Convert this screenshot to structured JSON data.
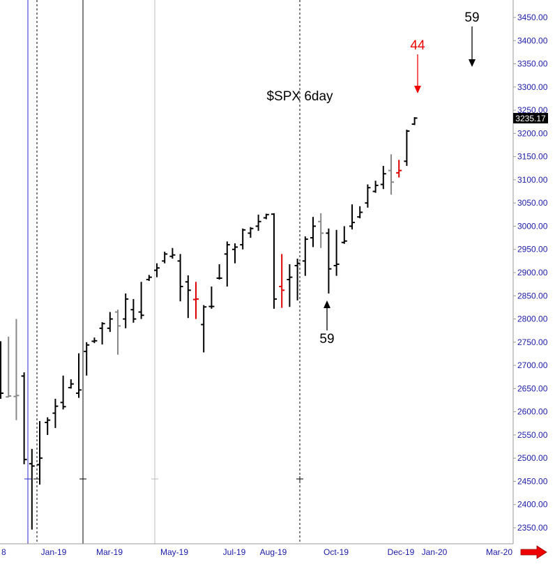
{
  "chart_data": {
    "type": "ohlc",
    "title": "$SPX 6day",
    "last_price_label": "3235.17",
    "y_axis": {
      "ylim": [
        2320,
        3480
      ],
      "ticks": [
        2350,
        2400,
        2450,
        2500,
        2550,
        2600,
        2650,
        2700,
        2750,
        2800,
        2850,
        2900,
        2950,
        3000,
        3050,
        3100,
        3150,
        3200,
        3250,
        3300,
        3350,
        3400,
        3450
      ],
      "tick_labels": [
        "2350.00",
        "2400.00",
        "2450.00",
        "2500.00",
        "2550.00",
        "2600.00",
        "2650.00",
        "2700.00",
        "2750.00",
        "2800.00",
        "2850.00",
        "2900.00",
        "2950.00",
        "3000.00",
        "3050.00",
        "3100.00",
        "3150.00",
        "3200.00",
        "3250.00",
        "3300.00",
        "3350.00",
        "3400.00",
        "3450.00"
      ]
    },
    "x_axis": {
      "labels": [
        "8",
        "Jan-19",
        "Mar-19",
        "May-19",
        "Jul-19",
        "Aug-19",
        "Oct-19",
        "Dec-19",
        "Jan-20",
        "Mar-20"
      ]
    },
    "colors": {
      "up_bar": "#000000",
      "neutral_bar": "#888888",
      "down_bar": "#dd0000",
      "axis_text": "#1a1aa8",
      "annotation_red": "#ee0000",
      "scroll_arrow": "#ee0000"
    },
    "bars": [
      {
        "h": 2752,
        "l": 2628,
        "o": 2658,
        "c": 2640,
        "color": "black"
      },
      {
        "h": 2762,
        "l": 2631,
        "o": 2632,
        "c": 2634,
        "color": "gray"
      },
      {
        "h": 2800,
        "l": 2582,
        "o": 2633,
        "c": 2635,
        "color": "gray"
      },
      {
        "h": 2685,
        "l": 2487,
        "o": 2677,
        "c": 2497,
        "color": "black"
      },
      {
        "h": 2520,
        "l": 2346,
        "o": 2488,
        "c": 2483,
        "color": "black"
      },
      {
        "h": 2580,
        "l": 2443,
        "o": 2486,
        "c": 2500,
        "color": "black"
      },
      {
        "h": 2588,
        "l": 2550,
        "o": 2577,
        "c": 2582,
        "color": "black"
      },
      {
        "h": 2628,
        "l": 2565,
        "o": 2597,
        "c": 2612,
        "color": "black"
      },
      {
        "h": 2678,
        "l": 2605,
        "o": 2620,
        "c": 2611,
        "color": "black"
      },
      {
        "h": 2670,
        "l": 2650,
        "o": 2652,
        "c": 2660,
        "color": "black"
      },
      {
        "h": 2726,
        "l": 2630,
        "o": 2640,
        "c": 2647,
        "color": "black"
      },
      {
        "h": 2750,
        "l": 2678,
        "o": 2730,
        "c": 2744,
        "color": "black"
      },
      {
        "h": 2760,
        "l": 2748,
        "o": 2752,
        "c": 2753,
        "color": "black"
      },
      {
        "h": 2793,
        "l": 2745,
        "o": 2780,
        "c": 2790,
        "color": "black"
      },
      {
        "h": 2815,
        "l": 2772,
        "o": 2780,
        "c": 2800,
        "color": "black"
      },
      {
        "h": 2820,
        "l": 2723,
        "o": 2815,
        "c": 2785,
        "color": "gray"
      },
      {
        "h": 2855,
        "l": 2780,
        "o": 2800,
        "c": 2843,
        "color": "black"
      },
      {
        "h": 2843,
        "l": 2792,
        "o": 2820,
        "c": 2800,
        "color": "black"
      },
      {
        "h": 2880,
        "l": 2800,
        "o": 2815,
        "c": 2808,
        "color": "black"
      },
      {
        "h": 2895,
        "l": 2882,
        "o": 2885,
        "c": 2890,
        "color": "black"
      },
      {
        "h": 2920,
        "l": 2890,
        "o": 2905,
        "c": 2910,
        "color": "black"
      },
      {
        "h": 2945,
        "l": 2920,
        "o": 2925,
        "c": 2940,
        "color": "black"
      },
      {
        "h": 2953,
        "l": 2930,
        "o": 2935,
        "c": 2938,
        "color": "black"
      },
      {
        "h": 2940,
        "l": 2838,
        "o": 2925,
        "c": 2870,
        "color": "black"
      },
      {
        "h": 2894,
        "l": 2802,
        "o": 2880,
        "c": 2862,
        "color": "black"
      },
      {
        "h": 2880,
        "l": 2800,
        "o": 2842,
        "c": 2843,
        "color": "red"
      },
      {
        "h": 2830,
        "l": 2728,
        "o": 2788,
        "c": 2826,
        "color": "black"
      },
      {
        "h": 2870,
        "l": 2822,
        "o": 2827,
        "c": 2827,
        "color": "black"
      },
      {
        "h": 2918,
        "l": 2885,
        "o": 2888,
        "c": 2888,
        "color": "black"
      },
      {
        "h": 2967,
        "l": 2870,
        "o": 2940,
        "c": 2960,
        "color": "black"
      },
      {
        "h": 2963,
        "l": 2920,
        "o": 2950,
        "c": 2955,
        "color": "black"
      },
      {
        "h": 2995,
        "l": 2950,
        "o": 2960,
        "c": 2992,
        "color": "black"
      },
      {
        "h": 2998,
        "l": 2975,
        "o": 2985,
        "c": 2995,
        "color": "black"
      },
      {
        "h": 3025,
        "l": 2990,
        "o": 3000,
        "c": 3010,
        "color": "black"
      },
      {
        "h": 3027,
        "l": 3015,
        "o": 3018,
        "c": 3025,
        "color": "black"
      },
      {
        "h": 3028,
        "l": 2822,
        "o": 3026,
        "c": 2843,
        "color": "black"
      },
      {
        "h": 2940,
        "l": 2824,
        "o": 2870,
        "c": 2862,
        "color": "red"
      },
      {
        "h": 2918,
        "l": 2826,
        "o": 2885,
        "c": 2890,
        "color": "black"
      },
      {
        "h": 2930,
        "l": 2840,
        "o": 2915,
        "c": 2920,
        "color": "black"
      },
      {
        "h": 2978,
        "l": 2893,
        "o": 2925,
        "c": 2972,
        "color": "black"
      },
      {
        "h": 3020,
        "l": 2955,
        "o": 2975,
        "c": 3000,
        "color": "black"
      },
      {
        "h": 3028,
        "l": 2953,
        "o": 3010,
        "c": 2985,
        "color": "gray"
      },
      {
        "h": 2995,
        "l": 2855,
        "o": 2985,
        "c": 2908,
        "color": "black"
      },
      {
        "h": 2992,
        "l": 2893,
        "o": 2915,
        "c": 2918,
        "color": "black"
      },
      {
        "h": 3000,
        "l": 2962,
        "o": 2965,
        "c": 2968,
        "color": "black"
      },
      {
        "h": 3047,
        "l": 2993,
        "o": 3000,
        "c": 3008,
        "color": "black"
      },
      {
        "h": 3043,
        "l": 3017,
        "o": 3020,
        "c": 3030,
        "color": "black"
      },
      {
        "h": 3090,
        "l": 3040,
        "o": 3050,
        "c": 3083,
        "color": "black"
      },
      {
        "h": 3098,
        "l": 3072,
        "o": 3075,
        "c": 3088,
        "color": "black"
      },
      {
        "h": 3130,
        "l": 3080,
        "o": 3090,
        "c": 3113,
        "color": "black"
      },
      {
        "h": 3155,
        "l": 3068,
        "o": 3120,
        "c": 3095,
        "color": "gray"
      },
      {
        "h": 3143,
        "l": 3105,
        "o": 3115,
        "c": 3120,
        "color": "red"
      },
      {
        "h": 3208,
        "l": 3130,
        "o": 3140,
        "c": 3205,
        "color": "black"
      },
      {
        "h": 3235,
        "l": 3218,
        "o": 3220,
        "c": 3233,
        "color": "black"
      }
    ],
    "annotations": [
      {
        "text": "44",
        "color": "red"
      },
      {
        "text": "59",
        "color": "black",
        "direction": "down"
      },
      {
        "text": "59",
        "color": "black",
        "direction": "up"
      }
    ]
  }
}
